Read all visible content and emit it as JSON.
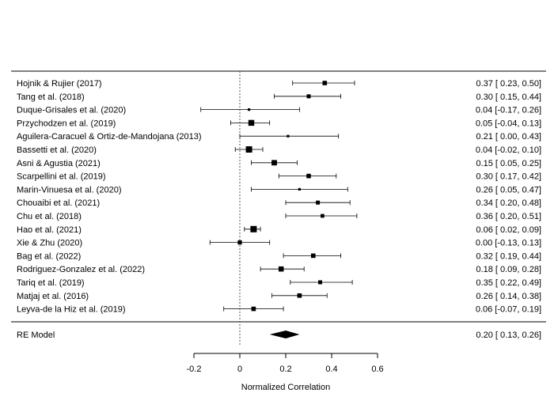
{
  "chart_data": {
    "type": "forest",
    "xlabel": "Normalized Correlation",
    "xlim": [
      -0.2,
      0.6
    ],
    "xticks": [
      -0.2,
      0,
      0.2,
      0.4,
      0.6
    ],
    "xtick_labels": [
      "-0.2",
      "0",
      "0.2",
      "0.4",
      "0.6"
    ],
    "reference_line": 0,
    "studies": [
      {
        "label": "Hojnik & Rujier (2017)",
        "est": 0.37,
        "lo": 0.23,
        "hi": 0.5,
        "ci_text": "0.37 [ 0.23, 0.50]",
        "weight": 0.6
      },
      {
        "label": "Tang et al. (2018)",
        "est": 0.3,
        "lo": 0.15,
        "hi": 0.44,
        "ci_text": "0.30 [ 0.15, 0.44]",
        "weight": 0.5
      },
      {
        "label": "Duque-Grisales et al. (2020)",
        "est": 0.04,
        "lo": -0.17,
        "hi": 0.26,
        "ci_text": "0.04 [-0.17, 0.26]",
        "weight": 0.2
      },
      {
        "label": "Przychodzen et al. (2019)",
        "est": 0.05,
        "lo": -0.04,
        "hi": 0.13,
        "ci_text": "0.05 [-0.04, 0.13]",
        "weight": 0.9
      },
      {
        "label": "Aguilera-Caracuel & Ortiz-de-Mandojana (2013)",
        "est": 0.21,
        "lo": 0.0,
        "hi": 0.43,
        "ci_text": "0.21 [ 0.00, 0.43]",
        "weight": 0.2
      },
      {
        "label": "Bassetti et al. (2020)",
        "est": 0.04,
        "lo": -0.02,
        "hi": 0.1,
        "ci_text": "0.04 [-0.02, 0.10]",
        "weight": 1.0
      },
      {
        "label": "Asni & Agustia (2021)",
        "est": 0.15,
        "lo": 0.05,
        "hi": 0.25,
        "ci_text": "0.15 [ 0.05, 0.25]",
        "weight": 0.8
      },
      {
        "label": "Scarpellini et al. (2019)",
        "est": 0.3,
        "lo": 0.17,
        "hi": 0.42,
        "ci_text": "0.30 [ 0.17, 0.42]",
        "weight": 0.6
      },
      {
        "label": "Marin-Vinuesa et al. (2020)",
        "est": 0.26,
        "lo": 0.05,
        "hi": 0.47,
        "ci_text": "0.26 [ 0.05, 0.47]",
        "weight": 0.2
      },
      {
        "label": "Chouaibi et al. (2021)",
        "est": 0.34,
        "lo": 0.2,
        "hi": 0.48,
        "ci_text": "0.34 [ 0.20, 0.48]",
        "weight": 0.5
      },
      {
        "label": "Chu et al. (2018)",
        "est": 0.36,
        "lo": 0.2,
        "hi": 0.51,
        "ci_text": "0.36 [ 0.20, 0.51]",
        "weight": 0.45
      },
      {
        "label": "Hao et al. (2021)",
        "est": 0.06,
        "lo": 0.02,
        "hi": 0.09,
        "ci_text": "0.06 [ 0.02, 0.09]",
        "weight": 1.0
      },
      {
        "label": "Xie & Zhu (2020)",
        "est": 0.0,
        "lo": -0.13,
        "hi": 0.13,
        "ci_text": "0.00 [-0.13, 0.13]",
        "weight": 0.55
      },
      {
        "label": "Bag et al. (2022)",
        "est": 0.32,
        "lo": 0.19,
        "hi": 0.44,
        "ci_text": "0.32 [ 0.19, 0.44]",
        "weight": 0.6
      },
      {
        "label": "Rodriguez-Gonzalez et al. (2022)",
        "est": 0.18,
        "lo": 0.09,
        "hi": 0.28,
        "ci_text": "0.18 [ 0.09, 0.28]",
        "weight": 0.75
      },
      {
        "label": "Tariq et al. (2019)",
        "est": 0.35,
        "lo": 0.22,
        "hi": 0.49,
        "ci_text": "0.35 [ 0.22, 0.49]",
        "weight": 0.5
      },
      {
        "label": "Matjaj et al. (2016)",
        "est": 0.26,
        "lo": 0.14,
        "hi": 0.38,
        "ci_text": "0.26 [ 0.14, 0.38]",
        "weight": 0.6
      },
      {
        "label": "Leyva-de la Hiz et al. (2019)",
        "est": 0.06,
        "lo": -0.07,
        "hi": 0.19,
        "ci_text": "0.06 [-0.07, 0.19]",
        "weight": 0.6
      }
    ],
    "summary": {
      "label": "RE Model",
      "est": 0.2,
      "lo": 0.13,
      "hi": 0.26,
      "ci_text": "0.20 [ 0.13, 0.26]"
    }
  }
}
